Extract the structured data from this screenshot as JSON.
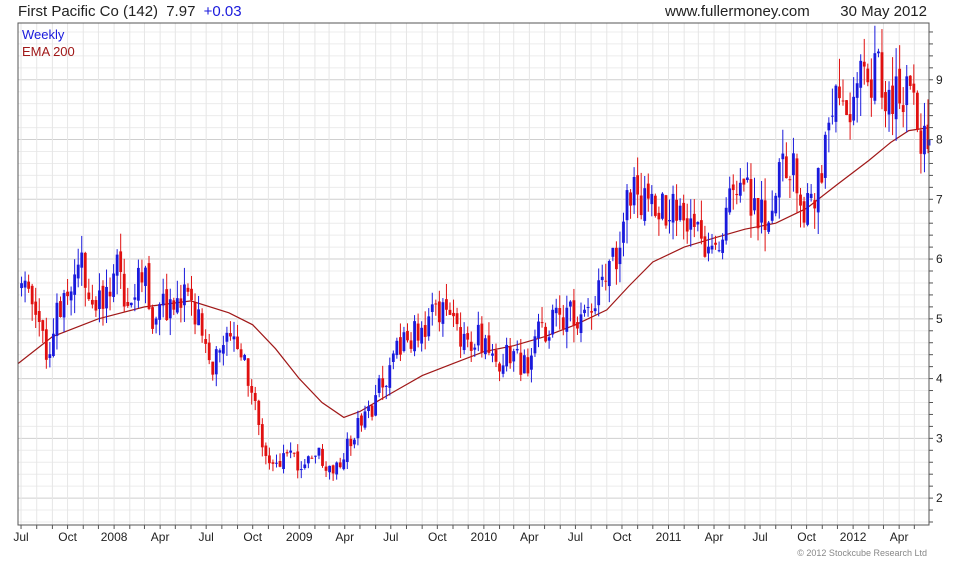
{
  "header": {
    "title": "First Pacific Co (142)",
    "price": "7.97",
    "change": "+0.03",
    "site": "www.fullermoney.com",
    "date": "30 May 2012"
  },
  "legend": {
    "weekly": "Weekly",
    "ema": "EMA 200"
  },
  "footer": {
    "copyright": "© 2012 Stockcube Research Ltd"
  },
  "colors": {
    "up": "#1a1adc",
    "down": "#e01010",
    "ema": "#a01818",
    "grid": "#d8d8d8",
    "frame": "#555555",
    "title": "#222222",
    "change": "#1a1adc",
    "weekly_label": "#1a1adc",
    "ema_label": "#a01818"
  },
  "chart_data": {
    "type": "candlestick",
    "interval": "weekly",
    "x_range": [
      "2007-06-25",
      "2012-05-30"
    ],
    "ylim": [
      1.55,
      9.95
    ],
    "y_axis_position": "right",
    "yticks": [
      2,
      3,
      4,
      5,
      6,
      7,
      8,
      9
    ],
    "xticks": [
      {
        "label": "Jul",
        "date": "2007-07-01"
      },
      {
        "label": "Oct",
        "date": "2007-10-01"
      },
      {
        "label": "2008",
        "date": "2008-01-01"
      },
      {
        "label": "Apr",
        "date": "2008-04-01"
      },
      {
        "label": "Jul",
        "date": "2008-07-01"
      },
      {
        "label": "Oct",
        "date": "2008-10-01"
      },
      {
        "label": "2009",
        "date": "2009-01-01"
      },
      {
        "label": "Apr",
        "date": "2009-04-01"
      },
      {
        "label": "Jul",
        "date": "2009-07-01"
      },
      {
        "label": "Oct",
        "date": "2009-10-01"
      },
      {
        "label": "2010",
        "date": "2010-01-01"
      },
      {
        "label": "Apr",
        "date": "2010-04-01"
      },
      {
        "label": "Jul",
        "date": "2010-07-01"
      },
      {
        "label": "Oct",
        "date": "2010-10-01"
      },
      {
        "label": "2011",
        "date": "2011-01-01"
      },
      {
        "label": "Apr",
        "date": "2011-04-01"
      },
      {
        "label": "Jul",
        "date": "2011-07-01"
      },
      {
        "label": "Oct",
        "date": "2011-10-01"
      },
      {
        "label": "2012",
        "date": "2012-01-01"
      },
      {
        "label": "Apr",
        "date": "2012-04-01"
      }
    ],
    "grid": true,
    "legend_position": "top-left",
    "close_series": {
      "name": "Weekly",
      "points": [
        [
          "2007-07-02",
          5.5
        ],
        [
          "2007-07-23",
          5.3
        ],
        [
          "2007-08-13",
          4.6
        ],
        [
          "2007-08-20",
          4.1
        ],
        [
          "2007-09-03",
          4.9
        ],
        [
          "2007-09-24",
          5.2
        ],
        [
          "2007-10-15",
          5.6
        ],
        [
          "2007-10-29",
          5.9
        ],
        [
          "2007-11-19",
          5.5
        ],
        [
          "2007-12-10",
          5.3
        ],
        [
          "2008-01-07",
          5.9
        ],
        [
          "2008-01-21",
          5.3
        ],
        [
          "2008-02-11",
          5.5
        ],
        [
          "2008-03-03",
          5.8
        ],
        [
          "2008-03-17",
          5.0
        ],
        [
          "2008-04-07",
          5.2
        ],
        [
          "2008-04-21",
          5.3
        ],
        [
          "2008-05-12",
          5.4
        ],
        [
          "2008-06-02",
          5.2
        ],
        [
          "2008-06-23",
          4.8
        ],
        [
          "2008-07-14",
          4.2
        ],
        [
          "2008-08-04",
          4.5
        ],
        [
          "2008-08-25",
          4.7
        ],
        [
          "2008-09-15",
          4.2
        ],
        [
          "2008-10-06",
          3.5
        ],
        [
          "2008-10-27",
          2.6
        ],
        [
          "2008-11-17",
          2.5
        ],
        [
          "2008-12-08",
          2.7
        ],
        [
          "2008-12-29",
          2.6
        ],
        [
          "2009-01-19",
          2.6
        ],
        [
          "2009-02-09",
          2.7
        ],
        [
          "2009-03-02",
          2.5
        ],
        [
          "2009-03-23",
          2.6
        ],
        [
          "2009-04-13",
          3.0
        ],
        [
          "2009-05-04",
          3.3
        ],
        [
          "2009-05-25",
          3.5
        ],
        [
          "2009-06-15",
          4.0
        ],
        [
          "2009-07-06",
          4.3
        ],
        [
          "2009-07-27",
          4.6
        ],
        [
          "2009-08-17",
          4.8
        ],
        [
          "2009-09-07",
          4.9
        ],
        [
          "2009-09-28",
          5.1
        ],
        [
          "2009-10-19",
          5.0
        ],
        [
          "2009-11-09",
          4.8
        ],
        [
          "2009-11-30",
          4.6
        ],
        [
          "2010-01-04",
          4.7
        ],
        [
          "2010-01-25",
          4.2
        ],
        [
          "2010-02-15",
          4.4
        ],
        [
          "2010-03-08",
          4.3
        ],
        [
          "2010-03-29",
          4.2
        ],
        [
          "2010-04-19",
          4.8
        ],
        [
          "2010-05-10",
          4.9
        ],
        [
          "2010-06-07",
          5.0
        ],
        [
          "2010-07-05",
          5.1
        ],
        [
          "2010-08-02",
          5.3
        ],
        [
          "2010-08-30",
          5.6
        ],
        [
          "2010-09-20",
          6.1
        ],
        [
          "2010-10-11",
          7.1
        ],
        [
          "2010-11-01",
          7.2
        ],
        [
          "2010-11-22",
          6.7
        ],
        [
          "2010-12-20",
          6.8
        ],
        [
          "2011-01-10",
          7.0
        ],
        [
          "2011-01-31",
          6.9
        ],
        [
          "2011-02-21",
          6.5
        ],
        [
          "2011-03-14",
          6.3
        ],
        [
          "2011-04-04",
          6.3
        ],
        [
          "2011-05-02",
          7.0
        ],
        [
          "2011-05-30",
          7.3
        ],
        [
          "2011-06-20",
          6.9
        ],
        [
          "2011-07-11",
          6.8
        ],
        [
          "2011-08-01",
          7.2
        ],
        [
          "2011-08-22",
          7.6
        ],
        [
          "2011-09-12",
          7.3
        ],
        [
          "2011-10-03",
          6.8
        ],
        [
          "2011-10-24",
          7.3
        ],
        [
          "2011-11-14",
          8.2
        ],
        [
          "2011-12-05",
          8.6
        ],
        [
          "2011-12-26",
          8.3
        ],
        [
          "2012-01-16",
          8.9
        ],
        [
          "2012-02-06",
          9.2
        ],
        [
          "2012-02-27",
          8.9
        ],
        [
          "2012-03-19",
          8.7
        ],
        [
          "2012-04-09",
          8.9
        ],
        [
          "2012-04-30",
          8.4
        ],
        [
          "2012-05-14",
          7.9
        ],
        [
          "2012-05-30",
          7.97
        ]
      ]
    },
    "ema_series": {
      "name": "EMA 200",
      "points": [
        [
          "2007-06-25",
          4.25
        ],
        [
          "2007-09-01",
          4.7
        ],
        [
          "2007-12-01",
          5.0
        ],
        [
          "2008-03-01",
          5.2
        ],
        [
          "2008-06-01",
          5.3
        ],
        [
          "2008-08-15",
          5.1
        ],
        [
          "2008-10-01",
          4.9
        ],
        [
          "2008-11-15",
          4.5
        ],
        [
          "2009-01-01",
          4.0
        ],
        [
          "2009-02-15",
          3.6
        ],
        [
          "2009-03-30",
          3.35
        ],
        [
          "2009-05-01",
          3.45
        ],
        [
          "2009-07-01",
          3.75
        ],
        [
          "2009-09-01",
          4.05
        ],
        [
          "2009-11-01",
          4.25
        ],
        [
          "2010-01-01",
          4.45
        ],
        [
          "2010-03-01",
          4.55
        ],
        [
          "2010-05-01",
          4.7
        ],
        [
          "2010-07-01",
          4.9
        ],
        [
          "2010-09-01",
          5.15
        ],
        [
          "2010-10-15",
          5.55
        ],
        [
          "2010-12-01",
          5.95
        ],
        [
          "2011-02-01",
          6.2
        ],
        [
          "2011-04-01",
          6.35
        ],
        [
          "2011-06-01",
          6.5
        ],
        [
          "2011-08-01",
          6.6
        ],
        [
          "2011-10-01",
          6.85
        ],
        [
          "2011-12-01",
          7.25
        ],
        [
          "2012-02-01",
          7.65
        ],
        [
          "2012-03-15",
          7.95
        ],
        [
          "2012-04-20",
          8.15
        ],
        [
          "2012-05-30",
          8.2
        ]
      ]
    }
  }
}
